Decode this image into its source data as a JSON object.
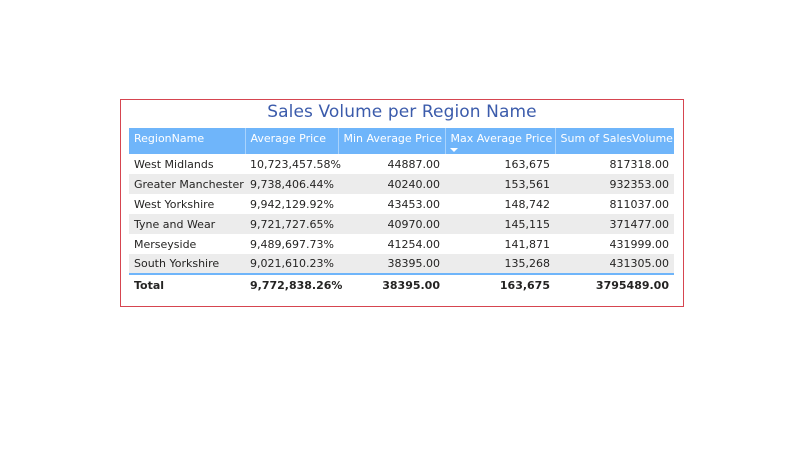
{
  "visual": {
    "title": "Sales Volume per Region Name",
    "border_color": "#d64550",
    "header_color": "#6fb5fa"
  },
  "table": {
    "columns": [
      "RegionName",
      "Average Price",
      "Min Average Price",
      "Max Average Price",
      "Sum of SalesVolume"
    ],
    "sorted_column": "Max Average Price",
    "sort_direction": "descending",
    "rows": [
      [
        "West Midlands",
        "10,723,457.58%",
        "44887.00",
        "163,675",
        "817318.00"
      ],
      [
        "Greater Manchester",
        "9,738,406.44%",
        "40240.00",
        "153,561",
        "932353.00"
      ],
      [
        "West Yorkshire",
        "9,942,129.92%",
        "43453.00",
        "148,742",
        "811037.00"
      ],
      [
        "Tyne and Wear",
        "9,721,727.65%",
        "40970.00",
        "145,115",
        "371477.00"
      ],
      [
        "Merseyside",
        "9,489,697.73%",
        "41254.00",
        "141,871",
        "431999.00"
      ],
      [
        "South Yorkshire",
        "9,021,610.23%",
        "38395.00",
        "135,268",
        "431305.00"
      ]
    ],
    "total": [
      "Total",
      "9,772,838.26%",
      "38395.00",
      "163,675",
      "3795489.00"
    ]
  }
}
